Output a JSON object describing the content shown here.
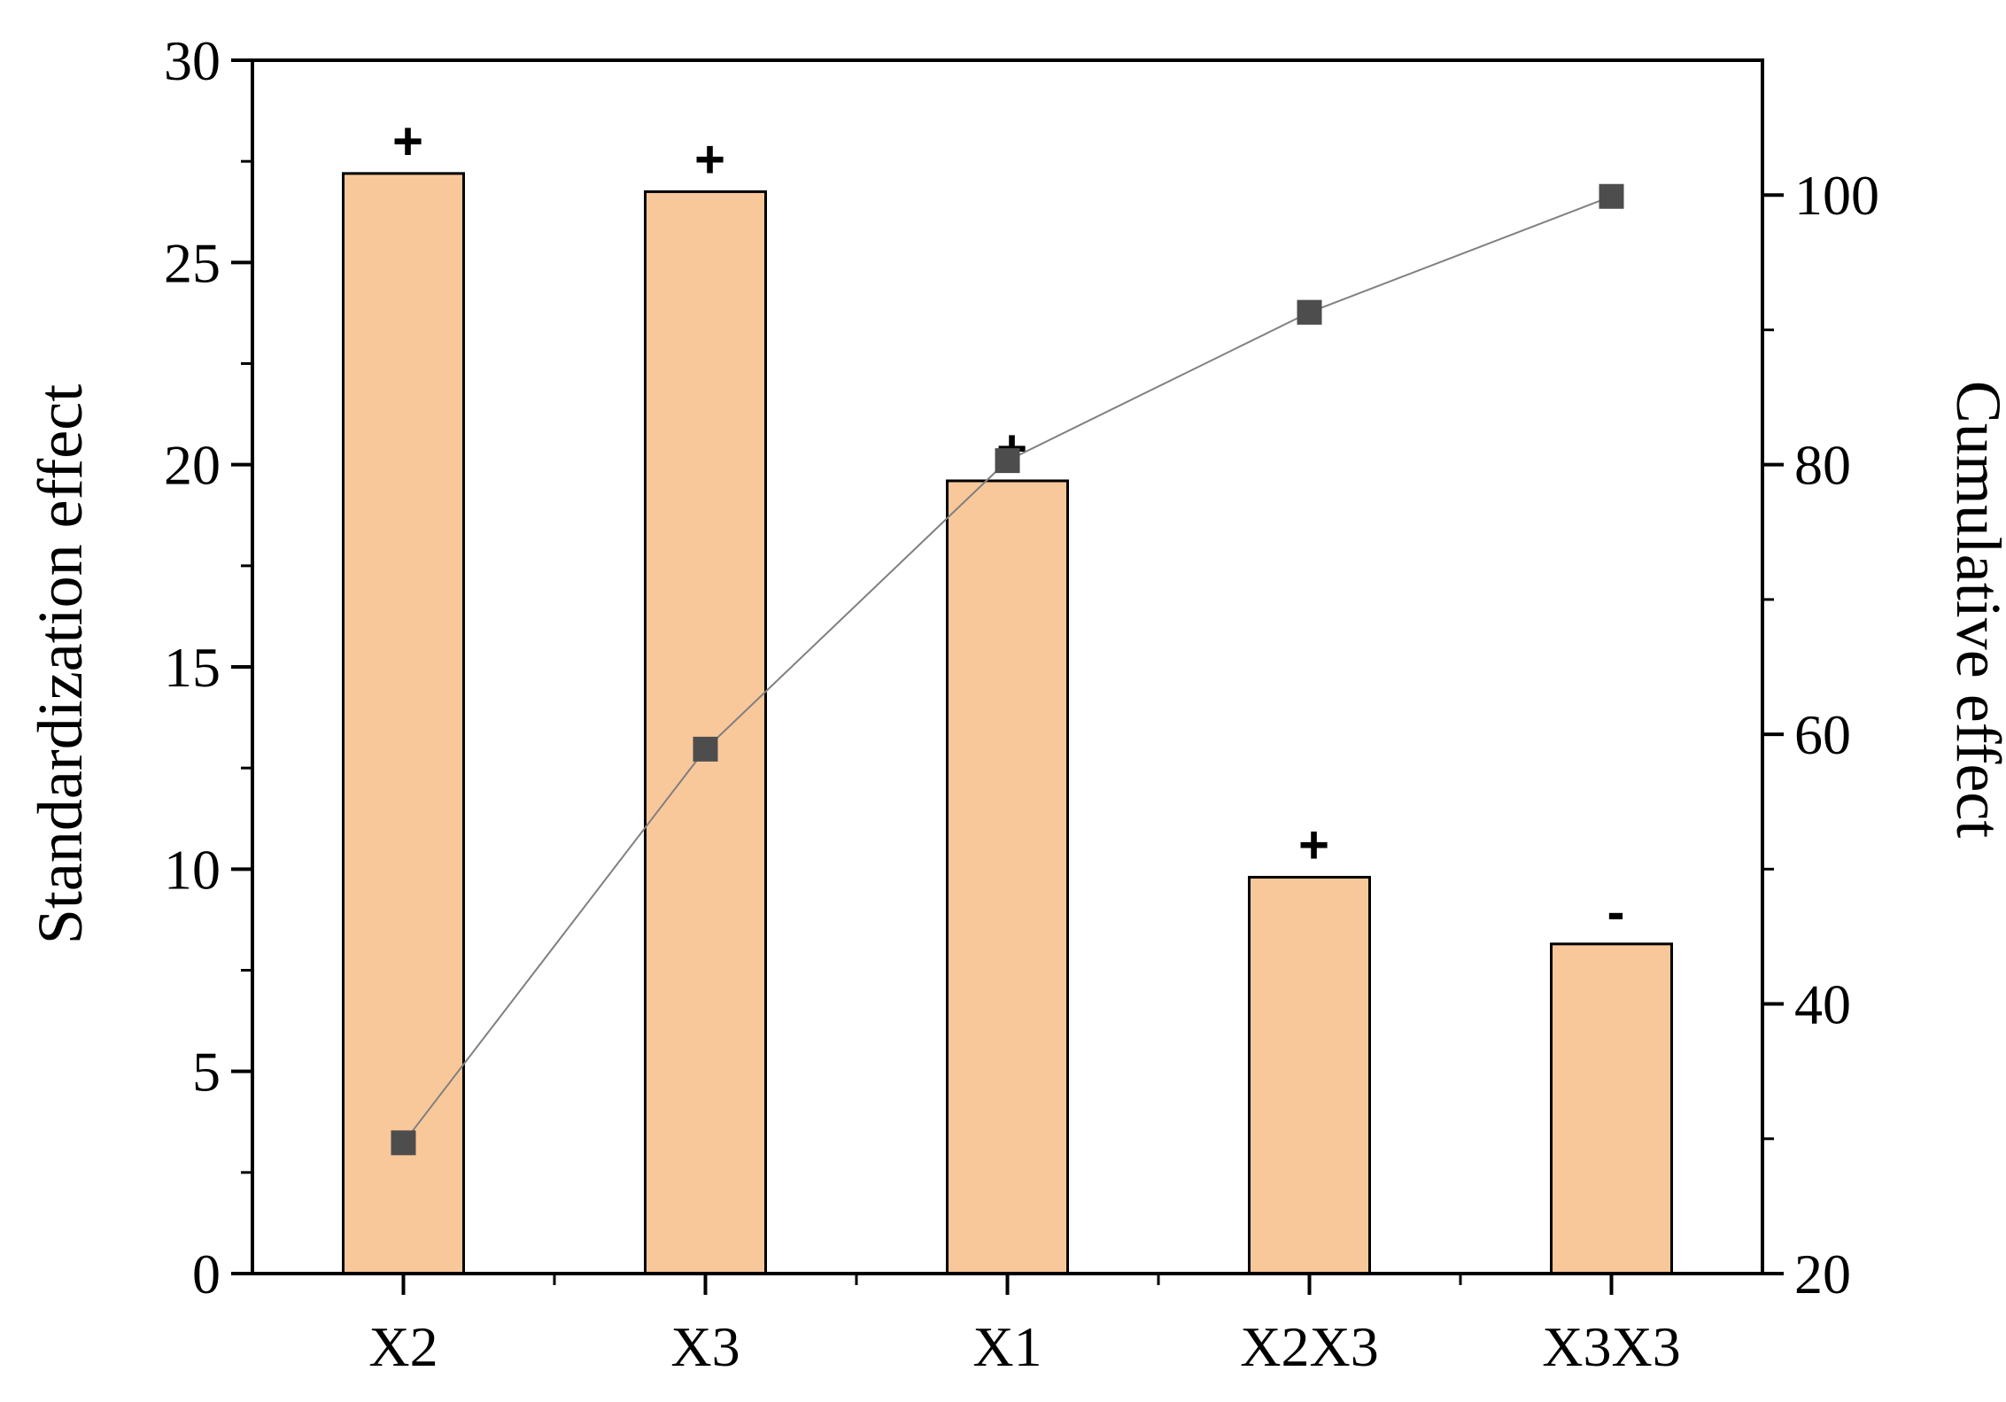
{
  "chart_data": {
    "type": "bar",
    "title": "",
    "categories": [
      "X2",
      "X3",
      "X1",
      "X2X3",
      "X3X3"
    ],
    "bar_series": {
      "values": [
        27.2,
        26.75,
        19.6,
        9.8,
        8.15
      ],
      "signs": [
        "+",
        "+",
        "+",
        "+",
        "-"
      ],
      "color": "#F9C89A",
      "edge_color": "#000000"
    },
    "line_series": {
      "values": [
        29.7,
        58.9,
        80.3,
        91.3,
        99.9
      ],
      "color": "#808080",
      "marker_color": "#4D4D4D",
      "marker": "square"
    },
    "left_axis": {
      "label": "Standardization effect",
      "ylim": [
        0,
        30
      ],
      "ticks": [
        "0",
        "5",
        "10",
        "15",
        "20",
        "25",
        "30"
      ],
      "tick_values": [
        0,
        5,
        10,
        15,
        20,
        25,
        30
      ]
    },
    "right_axis": {
      "label": "Cumulative effect",
      "ylim": [
        20,
        110
      ],
      "ticks": [
        "20",
        "40",
        "60",
        "80",
        "100"
      ],
      "tick_values": [
        20,
        40,
        60,
        80,
        100
      ]
    },
    "grid": false,
    "legend": "none"
  }
}
